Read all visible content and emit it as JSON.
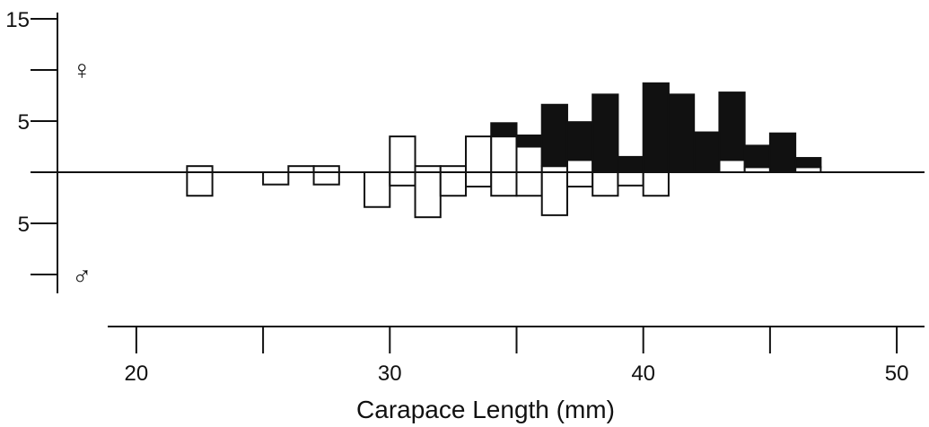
{
  "chart_data": {
    "type": "bar",
    "title": "",
    "xlabel": "Carapace Length (mm)",
    "ylabel": "",
    "xlim": [
      18.8,
      53
    ],
    "x_ticks": [
      20,
      25,
      30,
      35,
      40,
      45,
      50
    ],
    "x_tick_labels": [
      "20",
      "30",
      "40",
      "50"
    ],
    "y_ticks": [
      15,
      10,
      5,
      0,
      -5,
      -10
    ],
    "y_tick_labels": [
      {
        "label": "15",
        "value": 15
      },
      {
        "label": "5",
        "value": 5
      },
      {
        "label": "5",
        "value": -5
      }
    ],
    "upper_symbol": "♀",
    "lower_symbol": "♂",
    "bin_width": 1,
    "female_open": [
      {
        "x": 22,
        "value": 0.6
      },
      {
        "x": 26,
        "value": 0.6
      },
      {
        "x": 27,
        "value": 0.6
      },
      {
        "x": 30,
        "value": 3.5
      },
      {
        "x": 31,
        "value": 0.6
      },
      {
        "x": 32,
        "value": 0.6
      },
      {
        "x": 33,
        "value": 3.5
      },
      {
        "x": 34,
        "value": 3.5
      },
      {
        "x": 35,
        "value": 2.5
      },
      {
        "x": 36,
        "value": 0.6
      },
      {
        "x": 37,
        "value": 1.2
      },
      {
        "x": 43,
        "value": 1.2
      },
      {
        "x": 44,
        "value": 0.5
      },
      {
        "x": 46,
        "value": 0.5
      }
    ],
    "female_solid": [
      {
        "x": 34,
        "from": 3.5,
        "to": 4.8
      },
      {
        "x": 35,
        "from": 2.5,
        "to": 3.6
      },
      {
        "x": 36,
        "from": 0.6,
        "to": 6.6
      },
      {
        "x": 37,
        "from": 1.2,
        "to": 4.9
      },
      {
        "x": 38,
        "from": 0,
        "to": 7.6
      },
      {
        "x": 39,
        "from": 0,
        "to": 1.5
      },
      {
        "x": 40,
        "from": 0,
        "to": 8.7
      },
      {
        "x": 41,
        "from": 0,
        "to": 7.6
      },
      {
        "x": 42,
        "from": 0,
        "to": 3.9
      },
      {
        "x": 43,
        "from": 1.2,
        "to": 7.8
      },
      {
        "x": 44,
        "from": 0.5,
        "to": 2.6
      },
      {
        "x": 45,
        "from": 0,
        "to": 3.8
      },
      {
        "x": 46,
        "from": 0.5,
        "to": 1.4
      }
    ],
    "male": [
      {
        "x": 22,
        "value": 2.3
      },
      {
        "x": 25,
        "value": 1.2
      },
      {
        "x": 27,
        "value": 1.2
      },
      {
        "x": 29,
        "value": 3.4
      },
      {
        "x": 30,
        "value": 1.3
      },
      {
        "x": 31,
        "value": 4.4
      },
      {
        "x": 32,
        "value": 2.3
      },
      {
        "x": 33,
        "value": 1.4
      },
      {
        "x": 34,
        "value": 2.3
      },
      {
        "x": 35,
        "value": 2.3
      },
      {
        "x": 36,
        "value": 4.2
      },
      {
        "x": 37,
        "value": 1.4
      },
      {
        "x": 38,
        "value": 2.3
      },
      {
        "x": 39,
        "value": 1.3
      },
      {
        "x": 40,
        "value": 2.3
      }
    ]
  }
}
